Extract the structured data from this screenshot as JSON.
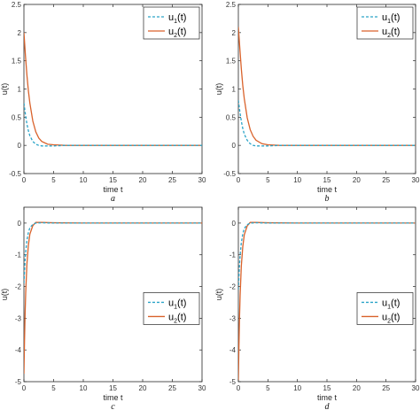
{
  "chart_data": [
    {
      "type": "line",
      "caption": "a",
      "xlabel": "time t",
      "ylabel": "u(t)",
      "xlim": [
        0,
        30
      ],
      "ylim": [
        -0.5,
        2.5
      ],
      "xticks": [
        0,
        5,
        10,
        15,
        20,
        25,
        30
      ],
      "yticks": [
        -0.5,
        0,
        0.5,
        1,
        1.5,
        2,
        2.5
      ],
      "xtick_labels": [
        "0",
        "5",
        "10",
        "15",
        "20",
        "25",
        "30"
      ],
      "ytick_labels": [
        "-0.5",
        "0",
        "0.5",
        "1",
        "1.5",
        "2",
        "2.5"
      ],
      "grid": false,
      "legend": "top-right",
      "series": [
        {
          "name": "u1(t)",
          "label": "u",
          "sub": "1",
          "suffix": "(t)",
          "color": "#2aa4c8",
          "dashed": true,
          "x": [
            0,
            0.25,
            0.5,
            0.75,
            1,
            1.5,
            2,
            2.5,
            3,
            4,
            5,
            7,
            10,
            15,
            20,
            25,
            30
          ],
          "y": [
            0.75,
            0.55,
            0.38,
            0.26,
            0.17,
            0.07,
            0.02,
            0.0,
            -0.01,
            -0.01,
            -0.01,
            0,
            0,
            0,
            0,
            0,
            0
          ]
        },
        {
          "name": "u2(t)",
          "label": "u",
          "sub": "2",
          "suffix": "(t)",
          "color": "#d9622b",
          "dashed": false,
          "x": [
            0,
            0.25,
            0.5,
            0.75,
            1,
            1.5,
            2,
            2.5,
            3,
            4,
            5,
            7,
            10,
            15,
            20,
            25,
            30
          ],
          "y": [
            2.0,
            1.6,
            1.25,
            0.97,
            0.75,
            0.43,
            0.24,
            0.13,
            0.07,
            0.02,
            0.01,
            0,
            0,
            0,
            0,
            0,
            0
          ]
        }
      ]
    },
    {
      "type": "line",
      "caption": "b",
      "xlabel": "time t",
      "ylabel": "u(t)",
      "xlim": [
        0,
        30
      ],
      "ylim": [
        -0.5,
        2.5
      ],
      "xticks": [
        0,
        5,
        10,
        15,
        20,
        25,
        30
      ],
      "yticks": [
        -0.5,
        0,
        0.5,
        1,
        1.5,
        2,
        2.5
      ],
      "xtick_labels": [
        "0",
        "5",
        "10",
        "15",
        "20",
        "25",
        "30"
      ],
      "ytick_labels": [
        "-0.5",
        "0",
        "0.5",
        "1",
        "1.5",
        "2",
        "2.5"
      ],
      "grid": false,
      "legend": "top-right",
      "series": [
        {
          "name": "u1(t)",
          "label": "u",
          "sub": "1",
          "suffix": "(t)",
          "color": "#2aa4c8",
          "dashed": true,
          "x": [
            0,
            0.25,
            0.5,
            0.75,
            1,
            1.5,
            2,
            2.5,
            3,
            4,
            5,
            7,
            10,
            15,
            20,
            25,
            30
          ],
          "y": [
            0.8,
            0.6,
            0.43,
            0.3,
            0.2,
            0.09,
            0.03,
            0.0,
            -0.01,
            -0.01,
            -0.01,
            0,
            0,
            0,
            0,
            0,
            0
          ]
        },
        {
          "name": "u2(t)",
          "label": "u",
          "sub": "2",
          "suffix": "(t)",
          "color": "#d9622b",
          "dashed": false,
          "x": [
            0,
            0.25,
            0.5,
            0.75,
            1,
            1.5,
            2,
            2.5,
            3,
            4,
            5,
            7,
            10,
            15,
            20,
            25,
            30
          ],
          "y": [
            2.1,
            1.72,
            1.36,
            1.06,
            0.83,
            0.49,
            0.28,
            0.16,
            0.09,
            0.03,
            0.01,
            0,
            0,
            0,
            0,
            0,
            0
          ]
        }
      ]
    },
    {
      "type": "line",
      "caption": "c",
      "xlabel": "time t",
      "ylabel": "u(t)",
      "xlim": [
        0,
        30
      ],
      "ylim": [
        -5,
        0.5
      ],
      "xticks": [
        0,
        5,
        10,
        15,
        20,
        25,
        30
      ],
      "yticks": [
        -5,
        -4,
        -3,
        -2,
        -1,
        0
      ],
      "xtick_labels": [
        "0",
        "5",
        "10",
        "15",
        "20",
        "25",
        "30"
      ],
      "ytick_labels": [
        "-5",
        "-4",
        "-3",
        "-2",
        "-1",
        "0"
      ],
      "grid": false,
      "legend": "center-right",
      "series": [
        {
          "name": "u1(t)",
          "label": "u",
          "sub": "1",
          "suffix": "(t)",
          "color": "#2aa4c8",
          "dashed": true,
          "x": [
            0,
            0.1,
            0.2,
            0.3,
            0.5,
            0.75,
            1,
            1.5,
            2,
            3,
            5,
            10,
            20,
            30
          ],
          "y": [
            -1.9,
            -1.5,
            -1.15,
            -0.9,
            -0.55,
            -0.3,
            -0.15,
            -0.04,
            0.0,
            0.01,
            0,
            0,
            0,
            0
          ]
        },
        {
          "name": "u2(t)",
          "label": "u",
          "sub": "2",
          "suffix": "(t)",
          "color": "#d9622b",
          "dashed": false,
          "x": [
            0,
            0.1,
            0.2,
            0.3,
            0.5,
            0.75,
            1,
            1.5,
            2,
            3,
            5,
            10,
            20,
            30
          ],
          "y": [
            -4.75,
            -3.7,
            -2.85,
            -2.2,
            -1.3,
            -0.7,
            -0.35,
            -0.08,
            0.02,
            0.02,
            0.01,
            0,
            0,
            0
          ]
        }
      ]
    },
    {
      "type": "line",
      "caption": "d",
      "xlabel": "time t",
      "ylabel": "u(t)",
      "xlim": [
        0,
        30
      ],
      "ylim": [
        -5,
        0.5
      ],
      "xticks": [
        0,
        5,
        10,
        15,
        20,
        25,
        30
      ],
      "yticks": [
        -5,
        -4,
        -3,
        -2,
        -1,
        0
      ],
      "xtick_labels": [
        "0",
        "5",
        "10",
        "15",
        "20",
        "25",
        "30"
      ],
      "ytick_labels": [
        "-5",
        "-4",
        "-3",
        "-2",
        "-1",
        "0"
      ],
      "grid": false,
      "legend": "center-right",
      "series": [
        {
          "name": "u1(t)",
          "label": "u",
          "sub": "1",
          "suffix": "(t)",
          "color": "#2aa4c8",
          "dashed": true,
          "x": [
            0,
            0.1,
            0.2,
            0.3,
            0.5,
            0.75,
            1,
            1.5,
            2,
            3,
            5,
            10,
            20,
            30
          ],
          "y": [
            -2.1,
            -1.68,
            -1.3,
            -1.02,
            -0.62,
            -0.34,
            -0.17,
            -0.05,
            0.0,
            0.01,
            0,
            0,
            0,
            0
          ]
        },
        {
          "name": "u2(t)",
          "label": "u",
          "sub": "2",
          "suffix": "(t)",
          "color": "#d9622b",
          "dashed": false,
          "x": [
            0,
            0.1,
            0.2,
            0.3,
            0.5,
            0.75,
            1,
            1.5,
            2,
            3,
            5,
            10,
            20,
            30
          ],
          "y": [
            -4.95,
            -3.85,
            -2.95,
            -2.28,
            -1.36,
            -0.74,
            -0.37,
            -0.09,
            0.02,
            0.02,
            0.01,
            0,
            0,
            0
          ]
        }
      ]
    }
  ]
}
